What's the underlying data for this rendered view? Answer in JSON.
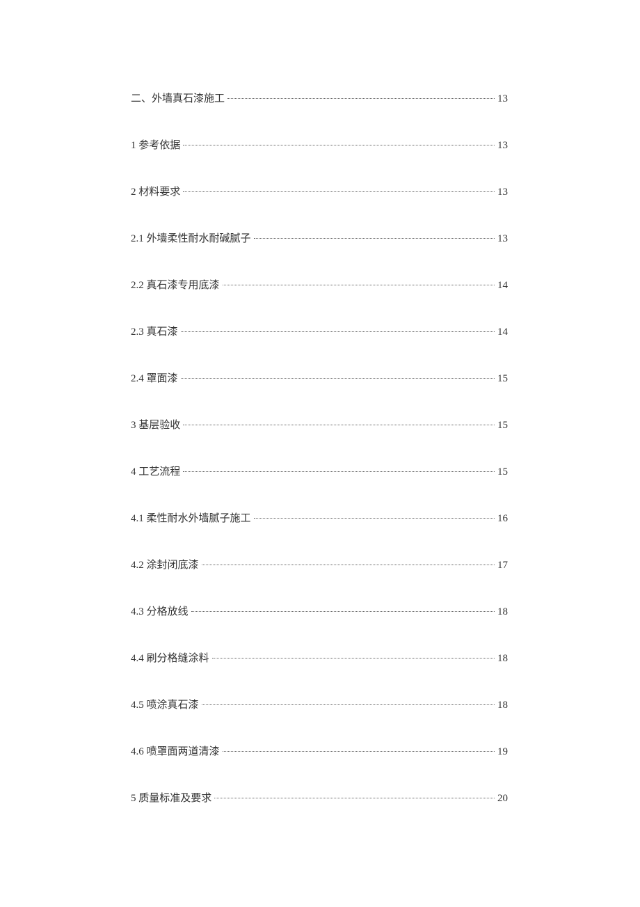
{
  "toc": {
    "entries": [
      {
        "label": "二、外墙真石漆施工",
        "page": "13"
      },
      {
        "label": "1 参考依据",
        "page": "13"
      },
      {
        "label": "2 材料要求",
        "page": "13"
      },
      {
        "label": "2.1 外墙柔性耐水耐碱腻子",
        "page": "13"
      },
      {
        "label": "2.2 真石漆专用底漆",
        "page": "14"
      },
      {
        "label": "2.3 真石漆",
        "page": "14"
      },
      {
        "label": "2.4 罩面漆",
        "page": "15"
      },
      {
        "label": "3 基层验收",
        "page": "15"
      },
      {
        "label": "4 工艺流程",
        "page": "15"
      },
      {
        "label": "4.1 柔性耐水外墙腻子施工",
        "page": "16"
      },
      {
        "label": "4.2 涂封闭底漆",
        "page": "17"
      },
      {
        "label": "4.3 分格放线",
        "page": "18"
      },
      {
        "label": "4.4 刷分格缝涂料",
        "page": "18"
      },
      {
        "label": "4.5 喷涂真石漆",
        "page": "18"
      },
      {
        "label": "4.6 喷罩面两道清漆",
        "page": "19"
      },
      {
        "label": "5 质量标准及要求",
        "page": "20"
      }
    ]
  }
}
